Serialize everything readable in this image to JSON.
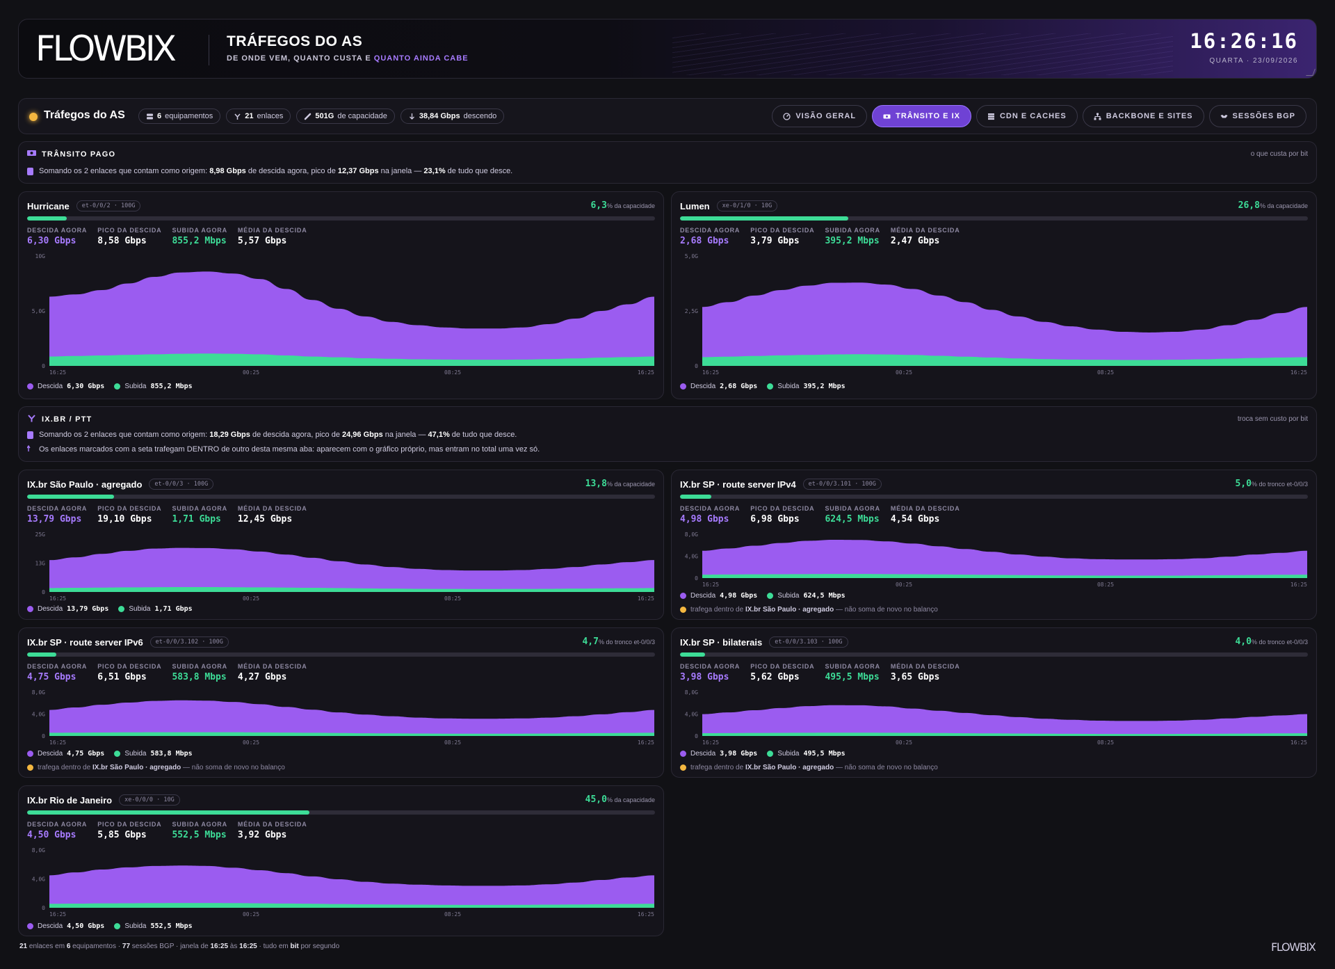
{
  "header": {
    "brand": "FLOWBIX",
    "title": "TRÁFEGOS DO AS",
    "subtitle_pre": "DE ONDE VEM, QUANTO CUSTA E ",
    "subtitle_hl": "QUANTO AINDA CABE",
    "clock": "16:26:16",
    "date": "QUARTA · 23/09/2026"
  },
  "navbar": {
    "title": "Tráfegos do AS",
    "chips": [
      {
        "icon": "server-icon",
        "bold": "6",
        "text": "equipamentos"
      },
      {
        "icon": "branch-icon",
        "bold": "21",
        "text": "enlaces"
      },
      {
        "icon": "link-icon",
        "bold": "501G",
        "text": "de capacidade"
      },
      {
        "icon": "arrow-down-icon",
        "bold": "38,84 Gbps",
        "text": "descendo"
      }
    ],
    "tabs": [
      {
        "label": "VISÃO GERAL",
        "icon": "gauge-icon",
        "active": false
      },
      {
        "label": "TRÂNSITO E IX",
        "icon": "ticket-icon",
        "active": true
      },
      {
        "label": "CDN E CACHES",
        "icon": "storage-icon",
        "active": false
      },
      {
        "label": "BACKBONE E SITES",
        "icon": "network-icon",
        "active": false
      },
      {
        "label": "SESSÕES BGP",
        "icon": "handshake-icon",
        "active": false
      }
    ]
  },
  "sections": {
    "transit": {
      "title": "TRÂNSITO PAGO",
      "right": "o que custa por bit",
      "line1": {
        "p1": "Somando os 2 enlaces que contam como origem: ",
        "b1": "8,98 Gbps",
        "p2": " de descida agora, pico de ",
        "b2": "12,37 Gbps",
        "p3": " na janela — ",
        "b3": "23,1%",
        "p4": " de tudo que desce."
      }
    },
    "ix": {
      "title": "IX.BR / PTT",
      "right": "troca sem custo por bit",
      "line1": {
        "p1": "Somando os 2 enlaces que contam como origem: ",
        "b1": "18,29 Gbps",
        "p2": " de descida agora, pico de ",
        "b2": "24,96 Gbps",
        "p3": " na janela — ",
        "b3": "47,1%",
        "p4": " de tudo que desce."
      },
      "line2": "Os enlaces marcados com a seta trafegam DENTRO de outro desta mesma aba: aparecem com o gráfico próprio, mas entram no total uma vez só."
    }
  },
  "labels": {
    "now_down": "DESCIDA AGORA",
    "peak_down": "PICO DA DESCIDA",
    "now_up": "SUBIDA AGORA",
    "avg_down": "MÉDIA DA DESCIDA",
    "legend_down": "Descida",
    "legend_up": "Subida",
    "x_ticks": [
      "16:25",
      "00:25",
      "08:25",
      "16:25"
    ]
  },
  "cards": [
    {
      "name": "Hurricane",
      "tag": "et-0/0/2 · 100G",
      "pct": "6,3",
      "pct_suffix": "% da capacidade",
      "fill": 0.063,
      "now_down": "6,30 Gbps",
      "peak_down": "8,58 Gbps",
      "now_up": "855,2 Mbps",
      "avg_down": "5,57 Gbps",
      "y_ticks": [
        "10G",
        "5,0G",
        "0"
      ],
      "note": null
    },
    {
      "name": "Lumen",
      "tag": "xe-0/1/0 · 10G",
      "pct": "26,8",
      "pct_suffix": "% da capacidade",
      "fill": 0.268,
      "now_down": "2,68 Gbps",
      "peak_down": "3,79 Gbps",
      "now_up": "395,2 Mbps",
      "avg_down": "2,47 Gbps",
      "y_ticks": [
        "5,0G",
        "2,5G",
        "0"
      ],
      "note": null
    },
    {
      "name": "IX.br São Paulo · agregado",
      "tag": "et-0/0/3 · 100G",
      "pct": "13,8",
      "pct_suffix": "% da capacidade",
      "fill": 0.138,
      "now_down": "13,79 Gbps",
      "peak_down": "19,10 Gbps",
      "now_up": "1,71 Gbps",
      "avg_down": "12,45 Gbps",
      "y_ticks": [
        "25G",
        "13G",
        "0"
      ],
      "note": null
    },
    {
      "name": "IX.br SP · route server IPv4",
      "tag": "et-0/0/3.101 · 100G",
      "pct": "5,0",
      "pct_suffix": "% do tronco et-0/0/3",
      "fill": 0.05,
      "now_down": "4,98 Gbps",
      "peak_down": "6,98 Gbps",
      "now_up": "624,5 Mbps",
      "avg_down": "4,54 Gbps",
      "y_ticks": [
        "8,0G",
        "4,0G",
        "0"
      ],
      "note": {
        "pre": "trafega dentro de ",
        "b": "IX.br São Paulo · agregado",
        "post": " — não soma de novo no balanço"
      }
    },
    {
      "name": "IX.br SP · route server IPv6",
      "tag": "et-0/0/3.102 · 100G",
      "pct": "4,7",
      "pct_suffix": "% do tronco et-0/0/3",
      "fill": 0.047,
      "now_down": "4,75 Gbps",
      "peak_down": "6,51 Gbps",
      "now_up": "583,8 Mbps",
      "avg_down": "4,27 Gbps",
      "y_ticks": [
        "8,0G",
        "4,0G",
        "0"
      ],
      "note": {
        "pre": "trafega dentro de ",
        "b": "IX.br São Paulo · agregado",
        "post": " — não soma de novo no balanço"
      }
    },
    {
      "name": "IX.br SP · bilaterais",
      "tag": "et-0/0/3.103 · 100G",
      "pct": "4,0",
      "pct_suffix": "% do tronco et-0/0/3",
      "fill": 0.04,
      "now_down": "3,98 Gbps",
      "peak_down": "5,62 Gbps",
      "now_up": "495,5 Mbps",
      "avg_down": "3,65 Gbps",
      "y_ticks": [
        "8,0G",
        "4,0G",
        "0"
      ],
      "note": {
        "pre": "trafega dentro de ",
        "b": "IX.br São Paulo · agregado",
        "post": " — não soma de novo no balanço"
      }
    },
    {
      "name": "IX.br Rio de Janeiro",
      "tag": "xe-0/0/0 · 10G",
      "pct": "45,0",
      "pct_suffix": "% da capacidade",
      "fill": 0.45,
      "now_down": "4,50 Gbps",
      "peak_down": "5,85 Gbps",
      "now_up": "552,5 Mbps",
      "avg_down": "3,92 Gbps",
      "y_ticks": [
        "8,0G",
        "4,0G",
        "0"
      ],
      "note": null
    }
  ],
  "series": [
    {
      "ymax": 10,
      "down": [
        6.3,
        6.5,
        6.9,
        7.5,
        8.1,
        8.5,
        8.58,
        8.4,
        7.9,
        7.0,
        6.0,
        5.2,
        4.5,
        4.0,
        3.7,
        3.5,
        3.4,
        3.4,
        3.5,
        3.8,
        4.3,
        5.0,
        5.6,
        6.3
      ],
      "up": [
        0.85,
        0.9,
        0.95,
        1.0,
        1.05,
        1.1,
        1.12,
        1.1,
        1.05,
        0.95,
        0.85,
        0.78,
        0.7,
        0.65,
        0.6,
        0.58,
        0.56,
        0.56,
        0.58,
        0.62,
        0.68,
        0.75,
        0.8,
        0.855
      ]
    },
    {
      "ymax": 5,
      "down": [
        2.68,
        2.9,
        3.2,
        3.45,
        3.65,
        3.78,
        3.79,
        3.7,
        3.5,
        3.2,
        2.9,
        2.55,
        2.25,
        2.0,
        1.8,
        1.65,
        1.55,
        1.52,
        1.55,
        1.65,
        1.85,
        2.1,
        2.4,
        2.68
      ],
      "up": [
        0.4,
        0.42,
        0.45,
        0.48,
        0.5,
        0.52,
        0.53,
        0.52,
        0.5,
        0.46,
        0.42,
        0.38,
        0.34,
        0.31,
        0.29,
        0.28,
        0.27,
        0.27,
        0.28,
        0.3,
        0.33,
        0.36,
        0.38,
        0.395
      ]
    },
    {
      "ymax": 25,
      "down": [
        13.8,
        15.0,
        16.5,
        17.8,
        18.8,
        19.1,
        19.0,
        18.5,
        17.5,
        16.2,
        14.8,
        13.3,
        11.9,
        10.8,
        10.0,
        9.5,
        9.3,
        9.3,
        9.5,
        10.0,
        10.8,
        11.9,
        12.9,
        13.8
      ],
      "up": [
        1.7,
        1.8,
        1.9,
        2.0,
        2.05,
        2.1,
        2.1,
        2.05,
        2.0,
        1.9,
        1.8,
        1.7,
        1.55,
        1.45,
        1.35,
        1.3,
        1.28,
        1.28,
        1.3,
        1.35,
        1.45,
        1.55,
        1.62,
        1.71
      ]
    },
    {
      "ymax": 8,
      "down": [
        4.98,
        5.4,
        5.9,
        6.4,
        6.8,
        6.98,
        6.95,
        6.7,
        6.3,
        5.8,
        5.3,
        4.8,
        4.3,
        3.9,
        3.6,
        3.45,
        3.4,
        3.4,
        3.45,
        3.6,
        3.9,
        4.3,
        4.6,
        4.98
      ],
      "up": [
        0.62,
        0.65,
        0.68,
        0.7,
        0.72,
        0.74,
        0.74,
        0.72,
        0.7,
        0.66,
        0.62,
        0.58,
        0.54,
        0.5,
        0.47,
        0.45,
        0.44,
        0.44,
        0.45,
        0.48,
        0.52,
        0.56,
        0.6,
        0.62
      ]
    },
    {
      "ymax": 8,
      "down": [
        4.75,
        5.2,
        5.7,
        6.1,
        6.4,
        6.51,
        6.45,
        6.2,
        5.8,
        5.3,
        4.8,
        4.3,
        3.9,
        3.6,
        3.35,
        3.2,
        3.15,
        3.15,
        3.2,
        3.35,
        3.6,
        3.95,
        4.35,
        4.75
      ],
      "up": [
        0.58,
        0.6,
        0.63,
        0.66,
        0.68,
        0.69,
        0.69,
        0.68,
        0.65,
        0.62,
        0.58,
        0.54,
        0.5,
        0.47,
        0.44,
        0.42,
        0.41,
        0.41,
        0.42,
        0.45,
        0.48,
        0.52,
        0.55,
        0.58
      ]
    },
    {
      "ymax": 8,
      "down": [
        3.98,
        4.3,
        4.7,
        5.1,
        5.45,
        5.62,
        5.6,
        5.4,
        5.0,
        4.6,
        4.2,
        3.8,
        3.45,
        3.15,
        2.95,
        2.8,
        2.75,
        2.75,
        2.8,
        2.95,
        3.2,
        3.5,
        3.75,
        3.98
      ],
      "up": [
        0.5,
        0.52,
        0.55,
        0.57,
        0.59,
        0.6,
        0.6,
        0.59,
        0.57,
        0.54,
        0.5,
        0.47,
        0.44,
        0.41,
        0.39,
        0.37,
        0.36,
        0.36,
        0.37,
        0.39,
        0.42,
        0.45,
        0.48,
        0.495
      ]
    },
    {
      "ymax": 8,
      "down": [
        4.5,
        4.9,
        5.3,
        5.6,
        5.8,
        5.85,
        5.8,
        5.55,
        5.2,
        4.8,
        4.35,
        3.95,
        3.6,
        3.35,
        3.2,
        3.1,
        3.05,
        3.05,
        3.1,
        3.25,
        3.5,
        3.85,
        4.2,
        4.5
      ],
      "up": [
        0.55,
        0.58,
        0.61,
        0.63,
        0.65,
        0.66,
        0.66,
        0.65,
        0.62,
        0.59,
        0.56,
        0.52,
        0.48,
        0.45,
        0.43,
        0.41,
        0.4,
        0.4,
        0.41,
        0.43,
        0.46,
        0.5,
        0.53,
        0.5525
      ]
    }
  ],
  "colors": {
    "down": "#9b5cf0",
    "up": "#3ddc97",
    "accent": "#a77bff",
    "warn": "#f4b740"
  },
  "footer": {
    "n1": "21",
    "t1": " enlaces em ",
    "n2": "6",
    "t2": " equipamentos · ",
    "n3": "77",
    "t3": " sessões BGP · janela de ",
    "n4": "16:25",
    "t4": " às ",
    "n5": "16:25",
    "t5": " · tudo em ",
    "n6": "bit",
    "t6": " por segundo"
  },
  "footer_logo": "FLOWBIX"
}
